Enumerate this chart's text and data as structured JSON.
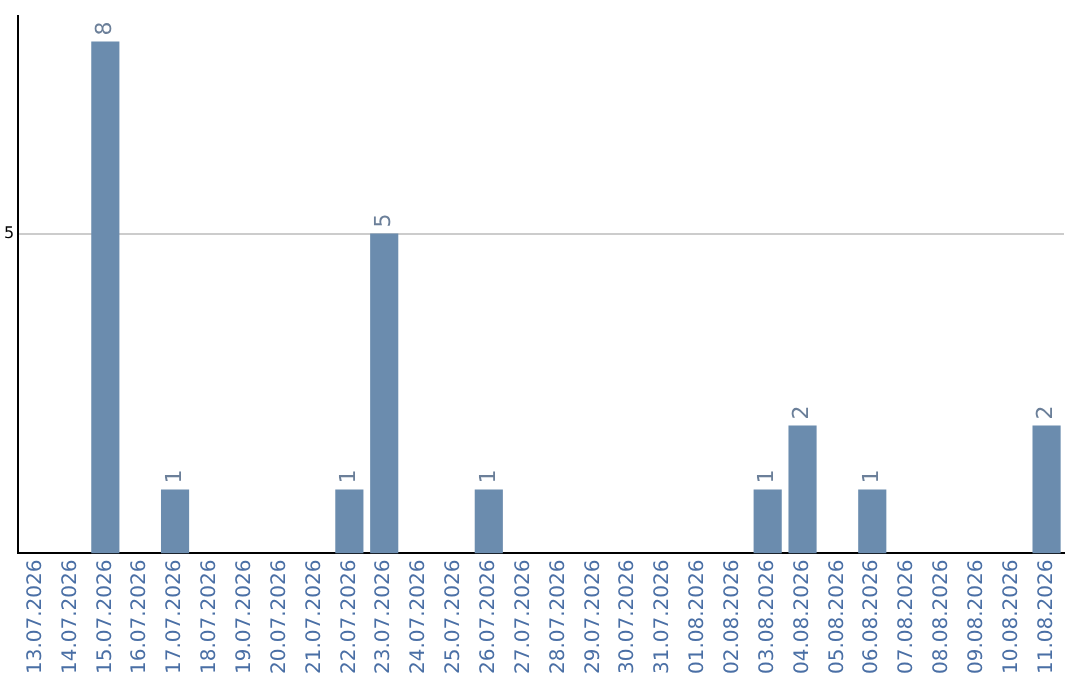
{
  "chart_data": {
    "type": "bar",
    "categories": [
      "13.07.2026",
      "14.07.2026",
      "15.07.2026",
      "16.07.2026",
      "17.07.2026",
      "18.07.2026",
      "19.07.2026",
      "20.07.2026",
      "21.07.2026",
      "22.07.2026",
      "23.07.2026",
      "24.07.2026",
      "25.07.2026",
      "26.07.2026",
      "27.07.2026",
      "28.07.2026",
      "29.07.2026",
      "30.07.2026",
      "31.07.2026",
      "01.08.2026",
      "02.08.2026",
      "03.08.2026",
      "04.08.2026",
      "05.08.2026",
      "06.08.2026",
      "07.08.2026",
      "08.08.2026",
      "09.08.2026",
      "10.08.2026",
      "11.08.2026"
    ],
    "values": [
      0,
      0,
      8,
      0,
      1,
      0,
      0,
      0,
      0,
      1,
      5,
      0,
      0,
      1,
      0,
      0,
      0,
      0,
      0,
      0,
      0,
      1,
      2,
      0,
      1,
      0,
      0,
      0,
      0,
      2
    ],
    "value_labels": [
      null,
      null,
      "8",
      null,
      "1",
      null,
      null,
      null,
      null,
      "1",
      "5",
      null,
      null,
      "1",
      null,
      null,
      null,
      null,
      null,
      null,
      null,
      "1",
      "2",
      null,
      "1",
      null,
      null,
      null,
      null,
      "2"
    ],
    "color": "#6b8cae",
    "ylim": [
      0,
      8.4
    ],
    "yticks": [
      5
    ],
    "grid": "y",
    "legend": false
  }
}
